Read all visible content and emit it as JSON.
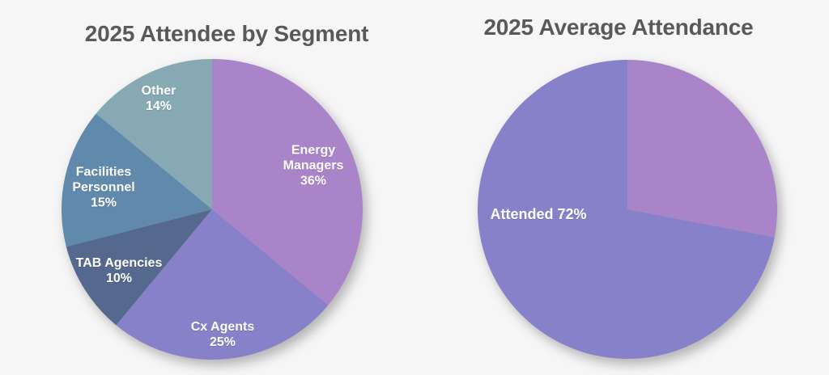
{
  "background_color": "#f6f6f6",
  "title_color": "#595959",
  "label_color": "#ffffff",
  "chart_data": [
    {
      "type": "pie",
      "title": "2025 Attendee by Segment",
      "start_angle_deg": 0,
      "direction": "clockwise",
      "legend": "none",
      "slices": [
        {
          "name": "Energy Managers",
          "value": 36,
          "color": "#a984c9",
          "label_lines": [
            "Energy",
            "Managers",
            "36%"
          ]
        },
        {
          "name": "Cx Agents",
          "value": 25,
          "color": "#8781c9",
          "label_lines": [
            "Cx Agents",
            "25%"
          ]
        },
        {
          "name": "TAB Agencies",
          "value": 10,
          "color": "#55698f",
          "label_lines": [
            "TAB Agencies",
            "10%"
          ]
        },
        {
          "name": "Facilities Personnel",
          "value": 15,
          "color": "#6089ab",
          "label_lines": [
            "Facilities",
            "Personnel",
            "15%"
          ]
        },
        {
          "name": "Other",
          "value": 14,
          "color": "#86a9b4",
          "label_lines": [
            "Other",
            "14%"
          ]
        }
      ]
    },
    {
      "type": "pie",
      "title": "2025 Average Attendance",
      "start_angle_deg": 0,
      "direction": "clockwise",
      "legend": "none",
      "slices": [
        {
          "name": "",
          "value": 28,
          "color": "#a984c9",
          "label_lines": []
        },
        {
          "name": "Attended",
          "value": 72,
          "color": "#8781c9",
          "label_lines": [
            "Attended 72%"
          ]
        }
      ]
    }
  ]
}
